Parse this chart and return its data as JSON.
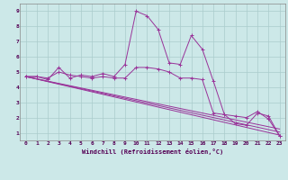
{
  "xlabel": "Windchill (Refroidissement éolien,°C)",
  "bg_color": "#cce8e8",
  "grid_color": "#aacccc",
  "line_color": "#993399",
  "xlim": [
    -0.5,
    23.5
  ],
  "ylim": [
    0.5,
    9.5
  ],
  "xticks": [
    0,
    1,
    2,
    3,
    4,
    5,
    6,
    7,
    8,
    9,
    10,
    11,
    12,
    13,
    14,
    15,
    16,
    17,
    18,
    19,
    20,
    21,
    22,
    23
  ],
  "yticks": [
    1,
    2,
    3,
    4,
    5,
    6,
    7,
    8,
    9
  ],
  "series1_x": [
    0,
    1,
    2,
    3,
    4,
    5,
    6,
    7,
    8,
    9,
    10,
    11,
    12,
    13,
    14,
    15,
    16,
    17,
    18,
    19,
    20,
    21,
    22,
    23
  ],
  "series1_y": [
    4.7,
    4.7,
    4.6,
    5.0,
    4.8,
    4.7,
    4.6,
    4.7,
    4.6,
    4.6,
    5.3,
    5.3,
    5.2,
    5.0,
    4.6,
    4.6,
    4.5,
    2.3,
    2.2,
    2.1,
    2.0,
    2.4,
    1.9,
    0.8
  ],
  "series2_x": [
    0,
    1,
    2,
    3,
    4,
    5,
    6,
    7,
    8,
    9,
    10,
    11,
    12,
    13,
    14,
    15,
    16,
    17,
    18,
    19,
    20,
    21,
    22,
    23
  ],
  "series2_y": [
    4.7,
    4.7,
    4.5,
    5.3,
    4.6,
    4.8,
    4.7,
    4.9,
    4.7,
    5.5,
    9.0,
    8.7,
    7.8,
    5.6,
    5.5,
    7.4,
    6.5,
    4.4,
    2.2,
    1.6,
    1.5,
    2.3,
    2.1,
    0.8
  ],
  "trend1_x": [
    0,
    23
  ],
  "trend1_y": [
    4.7,
    1.05
  ],
  "trend2_x": [
    0,
    23
  ],
  "trend2_y": [
    4.7,
    0.85
  ],
  "trend3_x": [
    0,
    23
  ],
  "trend3_y": [
    4.7,
    1.25
  ]
}
